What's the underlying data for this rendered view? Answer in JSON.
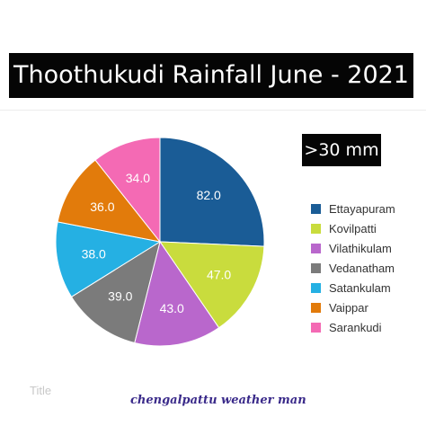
{
  "header": {
    "title": "Thoothukudi Rainfall June - 2021",
    "badge": ">30 mm"
  },
  "footer": {
    "faint_text": "Title",
    "watermark": "chengalpattu weather man"
  },
  "chart_data": {
    "type": "pie",
    "categories": [
      "Ettayapuram",
      "Kovilpatti",
      "Vilathikulam",
      "Vedanatham",
      "Satankulam",
      "Vaippar",
      "Sarankudi"
    ],
    "values": [
      82.0,
      47.0,
      43.0,
      39.0,
      38.0,
      36.0,
      34.0
    ],
    "value_labels": [
      "82.0",
      "47.0",
      "43.0",
      "39.0",
      "38.0",
      "36.0",
      "34.0"
    ],
    "colors": [
      "#1a5c96",
      "#c9dc3d",
      "#b967cc",
      "#7b7b7b",
      "#25b0e3",
      "#e27b0b",
      "#f46ab4"
    ],
    "start_angle": "12 o'clock",
    "direction": "clockwise",
    "legend_position": "right"
  }
}
